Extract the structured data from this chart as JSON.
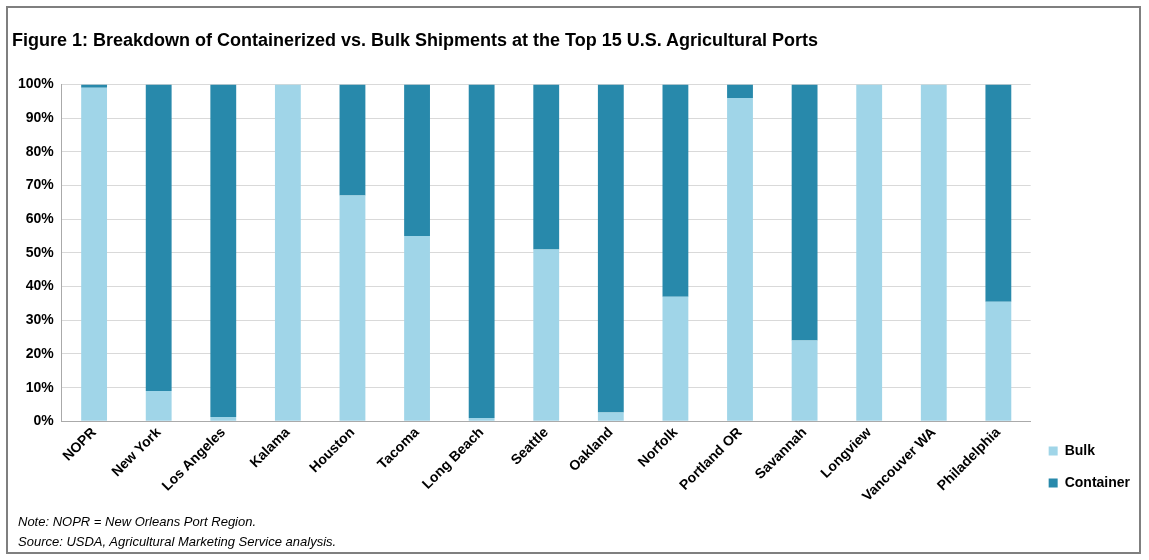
{
  "chart_data": {
    "type": "bar",
    "title": "Figure 1: Breakdown of Containerized vs. Bulk Shipments at the Top 15 U.S. Agricultural Ports",
    "categories": [
      "NOPR",
      "New York",
      "Los Angeles",
      "Kalama",
      "Houston",
      "Tacoma",
      "Long Beach",
      "Seattle",
      "Oakland",
      "Norfolk",
      "Portland OR",
      "Savannah",
      "Longview",
      "Vancouver WA",
      "Philadelphia"
    ],
    "series": [
      {
        "name": "Bulk",
        "color": "#a0d5e8",
        "values": [
          99,
          9,
          1.3,
          100,
          67,
          55,
          1,
          51,
          2.6,
          37,
          96,
          24,
          100,
          100,
          35.5
        ]
      },
      {
        "name": "Container",
        "color": "#2889ab",
        "values": [
          1,
          91,
          98.7,
          0,
          33,
          45,
          99,
          49,
          97.4,
          63,
          4,
          76,
          0,
          0,
          64.5
        ]
      }
    ],
    "stacked": true,
    "ylim": [
      0,
      100
    ],
    "yticks": [
      {
        "value": 0,
        "label": "0%"
      },
      {
        "value": 10,
        "label": "10%"
      },
      {
        "value": 20,
        "label": "20%"
      },
      {
        "value": 30,
        "label": "30%"
      },
      {
        "value": 40,
        "label": "40%"
      },
      {
        "value": 50,
        "label": "50%"
      },
      {
        "value": 60,
        "label": "60%"
      },
      {
        "value": 70,
        "label": "70%"
      },
      {
        "value": 80,
        "label": "80%"
      },
      {
        "value": 90,
        "label": "90%"
      },
      {
        "value": 100,
        "label": "100%"
      }
    ],
    "grid": "y",
    "legend": "bottom right",
    "annotations": [
      "Note: NOPR = New Orleans Port Region.",
      "Source: USDA, Agricultural Marketing Service analysis."
    ]
  }
}
